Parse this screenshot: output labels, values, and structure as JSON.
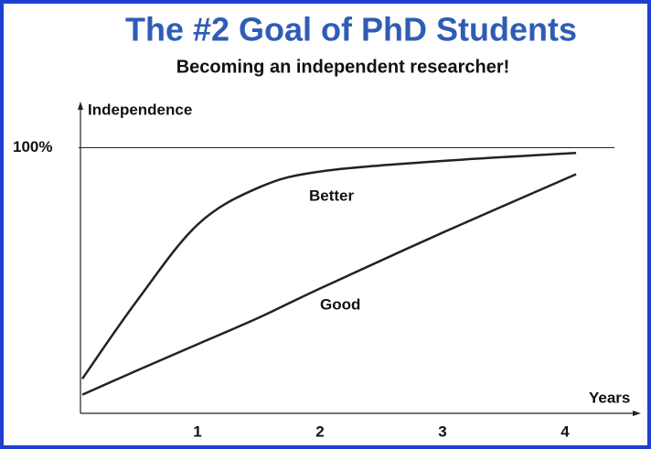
{
  "chart_data": {
    "type": "line",
    "title": "The #2 Goal of PhD Students",
    "subtitle": "Becoming an independent researcher!",
    "y_label": "Independence",
    "x_label": "Years",
    "x": [
      0.06,
      0.5,
      1,
      1.5,
      2,
      3,
      4.09
    ],
    "series": [
      {
        "name": "Better",
        "color": "#222222",
        "values": [
          13,
          42,
          71,
          85,
          91,
          95,
          98
        ]
      },
      {
        "name": "Good",
        "color": "#222222",
        "values": [
          7,
          16,
          26,
          36,
          47,
          68,
          90
        ]
      }
    ],
    "xlim": [
      0,
      4.6
    ],
    "xticks": [
      1,
      2,
      3,
      4
    ],
    "ylim": [
      0,
      116
    ],
    "yticks": [
      {
        "value": 100,
        "label": "100%"
      }
    ],
    "grid": true
  }
}
